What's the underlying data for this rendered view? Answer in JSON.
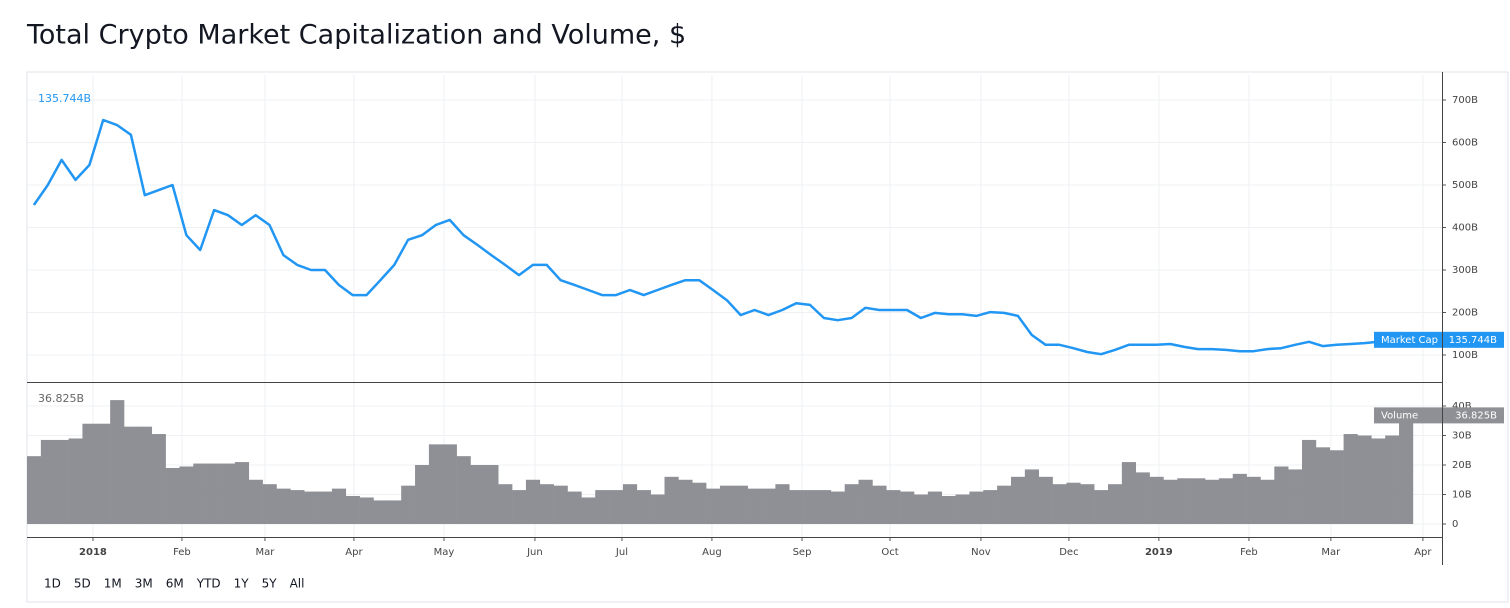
{
  "title": "Total Crypto Market Capitalization and Volume, $",
  "range_buttons": [
    "1D",
    "5D",
    "1M",
    "3M",
    "6M",
    "YTD",
    "1Y",
    "5Y",
    "All"
  ],
  "chart_data": [
    {
      "type": "line",
      "ylim": [
        36.5,
        758.8
      ],
      "yticks": [
        {
          "value": 100,
          "label": "100B"
        },
        {
          "value": 200,
          "label": "200B"
        },
        {
          "value": 300,
          "label": "300B"
        },
        {
          "value": 400,
          "label": "400B"
        },
        {
          "value": 500,
          "label": "500B"
        },
        {
          "value": 600,
          "label": "600B"
        },
        {
          "value": 700,
          "label": "700B"
        }
      ],
      "xlim": [
        -0.5,
        101.6
      ],
      "grid": true,
      "series": [
        {
          "name": "Market Cap",
          "color": "#2196f3",
          "values": [
            453,
            500,
            559,
            512,
            547,
            653,
            641,
            618,
            476,
            488,
            500,
            382,
            347,
            441,
            429,
            406,
            429,
            406,
            335,
            312,
            300,
            300,
            265,
            241,
            241,
            276,
            312,
            371,
            382,
            406,
            418,
            382,
            359,
            335,
            312,
            288,
            312,
            312,
            276,
            265,
            253,
            241,
            241,
            253,
            241,
            253,
            265,
            276,
            276,
            253,
            229,
            194,
            206,
            194,
            206,
            222,
            218,
            187,
            182,
            187,
            211,
            206,
            206,
            206,
            187,
            199,
            196,
            196,
            192,
            201,
            199,
            192,
            147,
            124,
            124,
            116,
            107,
            102,
            112,
            124,
            124,
            124,
            126,
            119,
            114,
            114,
            112,
            109,
            109,
            114,
            116,
            124,
            131,
            121,
            124,
            126,
            128,
            131,
            134,
            135.744
          ],
          "value_labels": {
            "99": "135.744B"
          }
        }
      ]
    },
    {
      "type": "bar",
      "ylim": [
        -4.4,
        47.8
      ],
      "yticks": [
        0,
        {
          "value": 10,
          "label": "10B"
        },
        {
          "value": 20,
          "label": "20B"
        },
        {
          "value": 30,
          "label": "30B"
        },
        {
          "value": 40,
          "label": "40B"
        }
      ],
      "xlim": [
        -0.5,
        101.6
      ],
      "grid": true,
      "xticks": [
        {
          "value": 4.26,
          "label": "2018"
        },
        {
          "value": 10.68,
          "label": "Feb"
        },
        {
          "value": 16.67,
          "label": "Mar"
        },
        {
          "value": 23.09,
          "label": "Apr"
        },
        {
          "value": 29.59,
          "label": "May"
        },
        {
          "value": 36.15,
          "label": "Jun"
        },
        {
          "value": 42.43,
          "label": "Jul"
        },
        {
          "value": 48.92,
          "label": "Aug"
        },
        {
          "value": 55.42,
          "label": "Sep"
        },
        {
          "value": 61.77,
          "label": "Oct"
        },
        {
          "value": 68.33,
          "label": "Nov"
        },
        {
          "value": 74.68,
          "label": "Dec"
        },
        {
          "value": 81.17,
          "label": "2019"
        },
        {
          "value": 87.67,
          "label": "Feb"
        },
        {
          "value": 93.58,
          "label": "Mar"
        },
        {
          "value": 100.22,
          "label": "Apr"
        }
      ],
      "series": [
        {
          "name": "Volume",
          "color": "#8e9095",
          "values": [
            23,
            28.5,
            28.5,
            29,
            34,
            34,
            42,
            33,
            33,
            30.5,
            19,
            19.5,
            20.5,
            20.5,
            20.5,
            21,
            15,
            13.5,
            12,
            11.5,
            11,
            11,
            12,
            9.5,
            9,
            8,
            8,
            13,
            20,
            27,
            27,
            23,
            20,
            20,
            13.5,
            11.5,
            15,
            13.5,
            13,
            11,
            9,
            11.5,
            11.5,
            13.5,
            11.5,
            10,
            16,
            15,
            14,
            12,
            13,
            13,
            12,
            12,
            13.5,
            11.5,
            11.5,
            11.5,
            11,
            13.5,
            15,
            13,
            11.5,
            11,
            10,
            11,
            9.5,
            10,
            11,
            11.5,
            13,
            16,
            18.5,
            16,
            13.5,
            14,
            13.5,
            11.5,
            13.5,
            21,
            17.5,
            16,
            15,
            15.5,
            15.5,
            15,
            15.5,
            17,
            16,
            15,
            19.5,
            18.5,
            28.5,
            26,
            25,
            30.5,
            30,
            29,
            30,
            36.825
          ],
          "value_labels": {
            "99": "36.825B"
          }
        }
      ]
    }
  ]
}
